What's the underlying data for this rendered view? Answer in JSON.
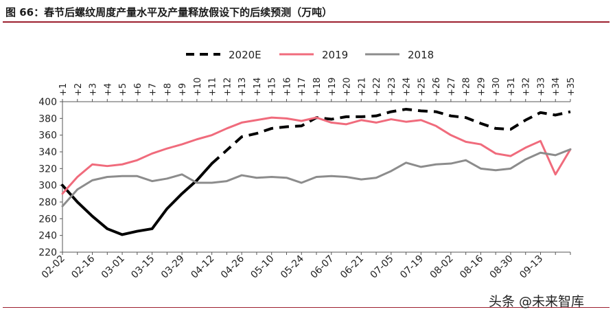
{
  "header": {
    "title": "图 66：春节后螺纹周度产量水平及产量释放假设下的后续预测（万吨）"
  },
  "footer": {
    "watermark": "头条 @未来智库"
  },
  "chart_data": {
    "type": "line",
    "title": "图 66：春节后螺纹周度产量水平及产量释放假设下的后续预测（万吨）",
    "xlabel": "",
    "ylabel": "",
    "ylim": [
      220,
      400
    ],
    "yticks": [
      220,
      240,
      260,
      280,
      300,
      320,
      340,
      360,
      380,
      400
    ],
    "grid": false,
    "legend_position": "top-center",
    "x": [
      "02-02",
      "02-09",
      "02-16",
      "02-23",
      "03-01",
      "03-08",
      "03-15",
      "03-22",
      "03-29",
      "04-05",
      "04-12",
      "04-19",
      "04-26",
      "05-03",
      "05-10",
      "05-17",
      "05-24",
      "05-31",
      "06-07",
      "06-14",
      "06-21",
      "06-28",
      "07-05",
      "07-12",
      "07-19",
      "07-26",
      "08-02",
      "08-09",
      "08-16",
      "08-23",
      "08-30",
      "09-06",
      "09-13",
      "09-20",
      "09-27"
    ],
    "x_tick_labels": [
      "02-02",
      "02-16",
      "03-01",
      "03-15",
      "03-29",
      "04-12",
      "04-26",
      "05-10",
      "05-24",
      "06-07",
      "06-21",
      "07-05",
      "07-19",
      "08-02",
      "08-16",
      "08-30",
      "09-13"
    ],
    "top_labels": [
      "+1",
      "+2",
      "+3",
      "+4",
      "+5",
      "+6",
      "+7",
      "+8",
      "+9",
      "+10",
      "+11",
      "+12",
      "+13",
      "+14",
      "+15",
      "+16",
      "+17",
      "+18",
      "+19",
      "+20",
      "+21",
      "+22",
      "+23",
      "+24",
      "+25",
      "+26",
      "+27",
      "+28",
      "+29",
      "+30",
      "+31",
      "+32",
      "+33",
      "+34",
      "+35"
    ],
    "series": [
      {
        "name": "2020E",
        "color": "#000000",
        "style": "dashed",
        "values": [
          300,
          280,
          263,
          248,
          241,
          245,
          248,
          272,
          290,
          306,
          326,
          342,
          358,
          362,
          368,
          370,
          371,
          381,
          379,
          382,
          382,
          383,
          388,
          391,
          389,
          388,
          383,
          381,
          374,
          368,
          367,
          378,
          387,
          384,
          388
        ],
        "solid_until_index": 10
      },
      {
        "name": "2019",
        "color": "#f06b7c",
        "style": "solid",
        "values": [
          290,
          310,
          325,
          323,
          325,
          330,
          338,
          344,
          349,
          355,
          360,
          368,
          375,
          378,
          381,
          380,
          377,
          381,
          375,
          373,
          378,
          375,
          379,
          376,
          378,
          371,
          360,
          352,
          349,
          338,
          335,
          345,
          353,
          313,
          343
        ]
      },
      {
        "name": "2018",
        "color": "#8c8c8c",
        "style": "solid",
        "values": [
          275,
          295,
          306,
          310,
          311,
          311,
          305,
          308,
          313,
          303,
          303,
          305,
          312,
          309,
          310,
          309,
          303,
          310,
          311,
          310,
          307,
          309,
          317,
          327,
          322,
          325,
          326,
          330,
          320,
          318,
          320,
          331,
          339,
          336,
          343
        ]
      }
    ]
  }
}
